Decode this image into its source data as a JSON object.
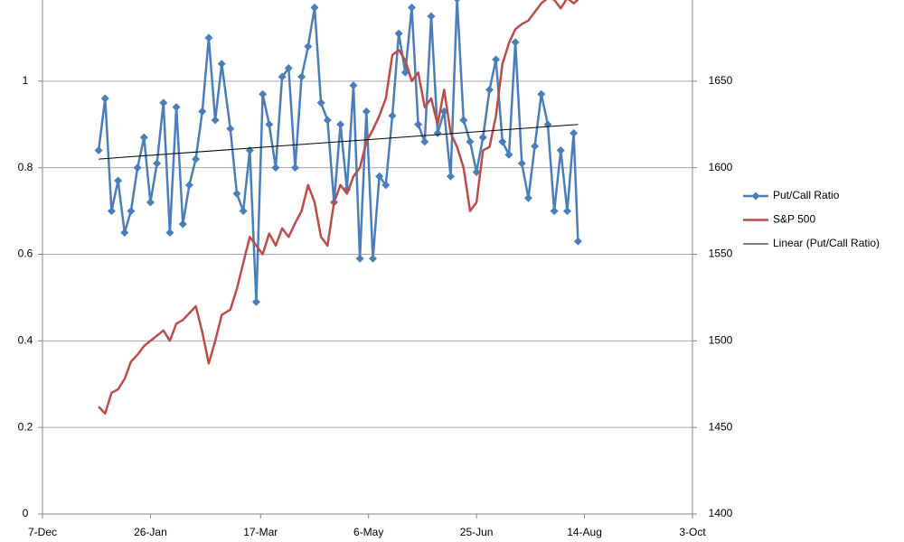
{
  "chart_data": {
    "type": "line",
    "xlim": [
      "7-Dec",
      "3-Oct"
    ],
    "xticks": [
      "7-Dec",
      "26-Jan",
      "17-Mar",
      "6-May",
      "25-Jun",
      "14-Aug",
      "3-Oct"
    ],
    "ylim": [
      0,
      1.2
    ],
    "yticks": [
      0,
      0.2,
      0.4,
      0.6,
      0.8,
      1
    ],
    "y2lim": [
      1400,
      1700
    ],
    "y2ticks": [
      1400,
      1450,
      1500,
      1550,
      1600,
      1650
    ],
    "grid": true,
    "legend": "right",
    "series": [
      {
        "name": "Put/Call Ratio",
        "color": "#4a7ebb",
        "marker": "diamond",
        "x": [
          "2-Jan",
          "5-Jan",
          "8-Jan",
          "11-Jan",
          "14-Jan",
          "17-Jan",
          "20-Jan",
          "23-Jan",
          "26-Jan",
          "29-Jan",
          "1-Feb",
          "4-Feb",
          "7-Feb",
          "10-Feb",
          "13-Feb",
          "16-Feb",
          "19-Feb",
          "22-Feb",
          "25-Feb",
          "28-Feb",
          "3-Mar",
          "6-Mar",
          "9-Mar",
          "12-Mar",
          "15-Mar",
          "18-Mar",
          "21-Mar",
          "24-Mar",
          "27-Mar",
          "30-Mar",
          "2-Apr",
          "5-Apr",
          "8-Apr",
          "11-Apr",
          "14-Apr",
          "17-Apr",
          "20-Apr",
          "23-Apr",
          "26-Apr",
          "29-Apr",
          "2-May",
          "5-May",
          "8-May",
          "11-May",
          "14-May",
          "17-May",
          "20-May",
          "23-May",
          "26-May",
          "29-May",
          "1-Jun",
          "4-Jun",
          "7-Jun",
          "10-Jun",
          "13-Jun",
          "16-Jun",
          "19-Jun",
          "22-Jun",
          "25-Jun",
          "28-Jun",
          "1-Jul",
          "4-Jul",
          "7-Jul",
          "10-Jul",
          "13-Jul",
          "16-Jul",
          "19-Jul",
          "22-Jul",
          "25-Jul",
          "28-Jul",
          "31-Jul",
          "3-Aug",
          "6-Aug",
          "9-Aug",
          "11-Aug"
        ],
        "values": [
          0.84,
          0.96,
          0.7,
          0.77,
          0.65,
          0.7,
          0.8,
          0.87,
          0.72,
          0.81,
          0.95,
          0.65,
          0.94,
          0.67,
          0.76,
          0.82,
          0.93,
          1.1,
          0.91,
          1.04,
          0.89,
          0.74,
          0.7,
          0.84,
          0.49,
          0.97,
          0.9,
          0.8,
          1.01,
          1.03,
          0.8,
          1.01,
          1.08,
          1.17,
          0.95,
          0.91,
          0.72,
          0.9,
          0.75,
          0.99,
          0.59,
          0.93,
          0.59,
          0.78,
          0.76,
          0.92,
          1.11,
          1.02,
          1.17,
          0.9,
          0.86,
          1.15,
          0.88,
          0.93,
          0.78,
          1.19,
          0.91,
          0.86,
          0.79,
          0.87,
          0.98,
          1.05,
          0.86,
          0.83,
          1.09,
          0.81,
          0.73,
          0.85,
          0.97,
          0.9,
          0.7,
          0.84,
          0.7,
          0.88,
          0.63
        ]
      },
      {
        "name": "S&P 500",
        "color": "#be4b48",
        "axis": "y2",
        "x": [
          "2-Jan",
          "5-Jan",
          "8-Jan",
          "11-Jan",
          "14-Jan",
          "17-Jan",
          "20-Jan",
          "23-Jan",
          "26-Jan",
          "29-Jan",
          "1-Feb",
          "4-Feb",
          "7-Feb",
          "10-Feb",
          "13-Feb",
          "16-Feb",
          "19-Feb",
          "22-Feb",
          "25-Feb",
          "28-Feb",
          "3-Mar",
          "6-Mar",
          "9-Mar",
          "12-Mar",
          "15-Mar",
          "18-Mar",
          "21-Mar",
          "24-Mar",
          "27-Mar",
          "30-Mar",
          "2-Apr",
          "5-Apr",
          "8-Apr",
          "11-Apr",
          "14-Apr",
          "17-Apr",
          "20-Apr",
          "23-Apr",
          "26-Apr",
          "29-Apr",
          "2-May",
          "5-May",
          "8-May",
          "11-May",
          "14-May",
          "17-May",
          "20-May",
          "23-May",
          "26-May",
          "29-May",
          "1-Jun",
          "4-Jun",
          "7-Jun",
          "10-Jun",
          "13-Jun",
          "16-Jun",
          "19-Jun",
          "22-Jun",
          "25-Jun",
          "28-Jun",
          "1-Jul",
          "4-Jul",
          "7-Jul",
          "10-Jul",
          "13-Jul",
          "16-Jul",
          "19-Jul",
          "22-Jul",
          "25-Jul",
          "28-Jul",
          "31-Jul",
          "3-Aug",
          "6-Aug",
          "9-Aug",
          "11-Aug"
        ],
        "values": [
          1462,
          1458,
          1470,
          1472,
          1478,
          1488,
          1492,
          1497,
          1500,
          1503,
          1506,
          1500,
          1510,
          1512,
          1516,
          1520,
          1505,
          1487,
          1500,
          1515,
          1518,
          1530,
          1545,
          1560,
          1555,
          1550,
          1562,
          1555,
          1565,
          1560,
          1568,
          1575,
          1590,
          1580,
          1560,
          1555,
          1580,
          1590,
          1585,
          1595,
          1600,
          1615,
          1622,
          1630,
          1640,
          1665,
          1668,
          1662,
          1650,
          1655,
          1635,
          1640,
          1625,
          1645,
          1620,
          1612,
          1600,
          1575,
          1580,
          1610,
          1612,
          1630,
          1660,
          1672,
          1680,
          1683,
          1685,
          1690,
          1695,
          1698,
          1697,
          1692,
          1698,
          1695,
          1697
        ]
      },
      {
        "name": "Linear (Put/Call Ratio)",
        "color": "#000000",
        "x": [
          "2-Jan",
          "11-Aug"
        ],
        "values": [
          0.82,
          0.9
        ]
      }
    ]
  }
}
